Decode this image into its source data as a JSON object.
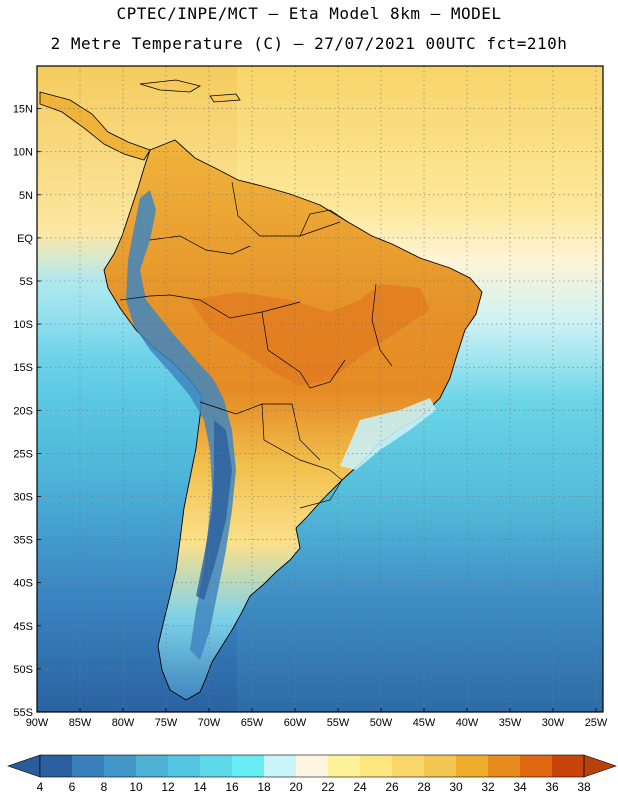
{
  "header": {
    "title_line1": "CPTEC/INPE/MCT –  Eta Model 8km – MODEL",
    "title_line2": "2 Metre Temperature (C) – 27/07/2021 00UTC fct=210h"
  },
  "map": {
    "region": "South America",
    "lat_labels": [
      "15N",
      "10N",
      "5N",
      "EQ",
      "5S",
      "10S",
      "15S",
      "20S",
      "25S",
      "30S",
      "35S",
      "40S",
      "45S",
      "50S",
      "55S"
    ],
    "lon_labels": [
      "90W",
      "85W",
      "80W",
      "75W",
      "70W",
      "65W",
      "60W",
      "55W",
      "50W",
      "45W",
      "40W",
      "35W",
      "30W",
      "25W"
    ],
    "lat_range": [
      -55,
      19
    ],
    "lon_range": [
      -90,
      -20
    ],
    "grid": true
  },
  "colorbar": {
    "labels": [
      "4",
      "6",
      "8",
      "10",
      "12",
      "14",
      "16",
      "18",
      "20",
      "22",
      "24",
      "26",
      "28",
      "30",
      "32",
      "34",
      "36",
      "38"
    ],
    "colors": [
      "#2a5fa0",
      "#3a80bd",
      "#4397c8",
      "#4fb1d6",
      "#55c6e2",
      "#5dd9ea",
      "#67edf3",
      "#c9f4f9",
      "#fff5e0",
      "#fff39a",
      "#fde680",
      "#f9d66a",
      "#f3c652",
      "#efae2e",
      "#e88b1e",
      "#e06810",
      "#c8440a"
    ],
    "under_color": "#2a5b9c",
    "over_color": "#b8420c"
  },
  "colors": {
    "ocean_warm": "#f7d774",
    "ocean_cold": "#3f8fc4",
    "land_hot": "#e28a2a",
    "andes": "#3f86c0"
  }
}
